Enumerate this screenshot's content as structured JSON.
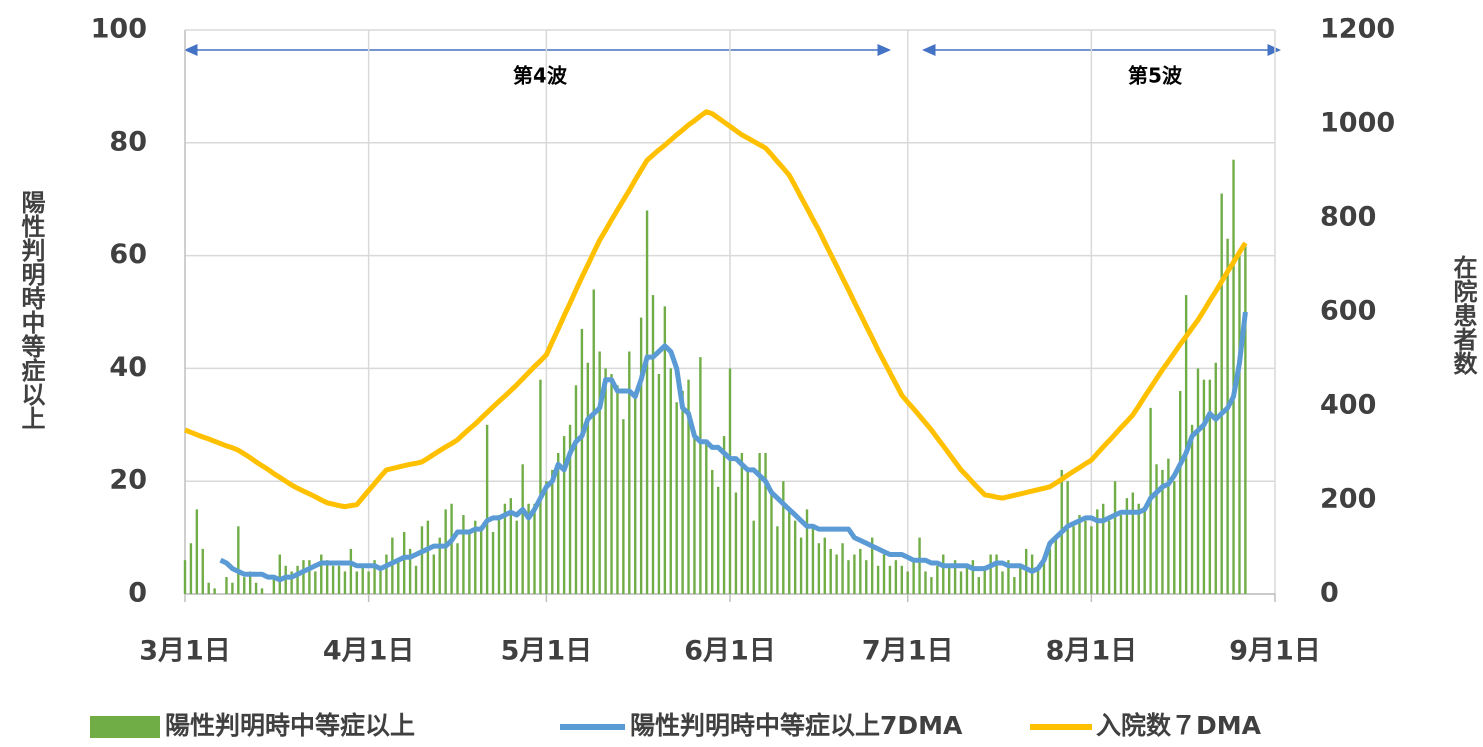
{
  "chart_data": {
    "type": "bar-line",
    "ylabel": "陽性判明時中等症以上",
    "y2label": "在院患者数",
    "annotations": [
      "第4波",
      "第5波"
    ],
    "x": [
      0,
      1,
      2,
      3,
      4,
      5,
      6,
      7,
      8,
      9,
      10,
      11,
      12,
      13,
      14,
      15,
      16,
      17,
      18,
      19,
      20,
      21,
      22,
      23,
      24,
      25,
      26,
      27,
      28,
      29,
      30,
      31,
      32,
      33,
      34,
      35,
      36,
      37,
      38,
      39,
      40,
      41,
      42,
      43,
      44,
      45,
      46,
      47,
      48,
      49,
      50,
      51,
      52,
      53,
      54,
      55,
      56,
      57,
      58,
      59,
      60,
      61,
      62,
      63,
      64,
      65,
      66,
      67,
      68,
      69,
      70,
      71,
      72,
      73,
      74,
      75,
      76,
      77,
      78,
      79,
      80,
      81,
      82,
      83,
      84,
      85,
      86,
      87,
      88,
      89,
      90,
      91,
      92,
      93,
      94,
      95,
      96,
      97,
      98,
      99,
      100,
      101,
      102,
      103,
      104,
      105,
      106,
      107,
      108,
      109,
      110,
      111,
      112,
      113,
      114,
      115,
      116,
      117,
      118,
      119,
      120,
      121,
      122,
      123,
      124,
      125,
      126,
      127,
      128,
      129,
      130,
      131,
      132,
      133,
      134,
      135,
      136,
      137,
      138,
      139,
      140,
      141,
      142,
      143,
      144,
      145,
      146,
      147,
      148,
      149,
      150,
      151,
      152,
      153,
      154,
      155,
      156,
      157,
      158,
      159,
      160,
      161,
      162,
      163,
      164,
      165,
      166,
      167,
      168,
      169,
      170,
      171,
      172,
      173,
      174,
      175,
      176,
      177,
      178,
      179
    ],
    "xlim": [
      0,
      184
    ],
    "xticks": [
      {
        "value": 0,
        "label": "3月1日"
      },
      {
        "value": 31,
        "label": "4月1日"
      },
      {
        "value": 61,
        "label": "5月1日"
      },
      {
        "value": 92,
        "label": "6月1日"
      },
      {
        "value": 122,
        "label": "7月1日"
      },
      {
        "value": 153,
        "label": "8月1日"
      },
      {
        "value": 184,
        "label": "9月1日"
      }
    ],
    "ylim": [
      0,
      100
    ],
    "yticks": [
      0,
      20,
      40,
      60,
      80,
      100
    ],
    "y2lim": [
      0,
      1200
    ],
    "y2ticks": [
      0,
      200,
      400,
      600,
      800,
      1000,
      1200
    ],
    "grid": true,
    "legend": "bottom",
    "series": [
      {
        "name": "陽性判明時中等症以上",
        "type": "bar",
        "color": "#70ad47",
        "values": [
          6,
          9,
          15,
          8,
          2,
          1,
          0,
          3,
          2,
          12,
          3,
          4,
          2,
          1,
          0,
          3,
          7,
          5,
          4,
          5,
          6,
          6,
          4,
          7,
          6,
          5,
          5,
          4,
          8,
          4,
          5,
          4,
          6,
          5,
          7,
          10,
          6,
          11,
          8,
          5,
          12,
          13,
          7,
          10,
          15,
          16,
          9,
          14,
          11,
          13,
          12,
          30,
          11,
          14,
          16,
          17,
          13,
          23,
          16,
          16,
          38,
          20,
          22,
          25,
          28,
          30,
          37,
          47,
          41,
          54,
          43,
          40,
          39,
          37,
          31,
          43,
          35,
          49,
          68,
          53,
          39,
          51,
          40,
          34,
          36,
          38,
          29,
          42,
          27,
          22,
          19,
          28,
          40,
          18,
          25,
          22,
          13,
          25,
          25,
          18,
          12,
          20,
          15,
          13,
          10,
          15,
          12,
          9,
          10,
          8,
          7,
          9,
          6,
          7,
          8,
          6,
          10,
          5,
          7,
          5,
          6,
          5,
          4,
          6,
          10,
          4,
          3,
          5,
          7,
          5,
          6,
          4,
          5,
          6,
          3,
          5,
          7,
          7,
          4,
          6,
          3,
          5,
          8,
          7,
          5,
          6,
          8,
          10,
          22,
          20,
          12,
          14,
          13,
          12,
          15,
          16,
          13,
          20,
          14,
          17,
          18,
          16,
          15,
          33,
          23,
          22,
          24,
          20,
          36,
          53,
          30,
          40,
          38,
          38,
          41,
          71,
          63,
          77,
          60,
          62
        ]
      },
      {
        "name": "陽性判明時中等症以上7DMA",
        "type": "line",
        "color": "#5b9bd5",
        "values": [
          null,
          null,
          null,
          null,
          null,
          null,
          6,
          5.5,
          4.5,
          4,
          3.5,
          3.5,
          3.5,
          3.5,
          3,
          3,
          2.5,
          3,
          3,
          3.5,
          4,
          4.5,
          5,
          5.5,
          5.5,
          5.5,
          5.5,
          5.5,
          5.5,
          5,
          5,
          5,
          5,
          4.5,
          5,
          5.5,
          6,
          6.5,
          6.5,
          7,
          7.5,
          8,
          8.5,
          8.5,
          8.5,
          9.5,
          11,
          11,
          11,
          11.5,
          11.5,
          13,
          13.5,
          13.5,
          14,
          14.5,
          14,
          15,
          13.5,
          15,
          17,
          19,
          20,
          23,
          22,
          25,
          27,
          28,
          31,
          32,
          33,
          38,
          38,
          36,
          36,
          36,
          35,
          38,
          42,
          42,
          43,
          44,
          43,
          40,
          33,
          32,
          28,
          27,
          27,
          26,
          26,
          25,
          24,
          24,
          23,
          22,
          22,
          21,
          20,
          18,
          17,
          16,
          15,
          14,
          13,
          12,
          12,
          11.5,
          11.5,
          11.5,
          11.5,
          11.5,
          11.5,
          10,
          9.5,
          9,
          8.5,
          8,
          7.5,
          7,
          7,
          7,
          6.5,
          6,
          6,
          6,
          5.5,
          5.5,
          5,
          5,
          5,
          5,
          5,
          4.5,
          4.5,
          4.5,
          5,
          5.5,
          5.5,
          5,
          5,
          5,
          4.5,
          4,
          4.5,
          6,
          9,
          10,
          11,
          12,
          12.5,
          13,
          13.5,
          13.5,
          13,
          13,
          13.5,
          14,
          14.5,
          14.5,
          14.5,
          14.5,
          15,
          17,
          18,
          19,
          19.5,
          21,
          23,
          25,
          28,
          29,
          30,
          32,
          31,
          32,
          33,
          35,
          41,
          50
        ]
      },
      {
        "name": "入院数７DMA",
        "type": "line",
        "axis": "y2",
        "color": "#ffc000",
        "values": [
          349,
          344,
          339,
          334,
          330,
          325,
          320,
          315,
          311,
          306,
          298,
          290,
          281,
          273,
          265,
          256,
          248,
          240,
          232,
          225,
          219,
          213,
          207,
          200,
          194,
          191,
          188,
          186,
          188,
          190,
          205,
          220,
          235,
          250,
          264,
          267,
          270,
          273,
          276,
          278,
          281,
          289,
          297,
          305,
          313,
          320,
          328,
          340,
          351,
          362,
          374,
          386,
          398,
          410,
          421,
          433,
          445,
          458,
          471,
          484,
          496,
          509,
          537,
          564,
          592,
          619,
          647,
          674,
          700,
          727,
          753,
          774,
          796,
          817,
          838,
          859,
          881,
          902,
          923,
          934,
          945,
          955,
          966,
          977,
          987,
          998,
          1007,
          1017,
          1026,
          1022,
          1013,
          1004,
          995,
          986,
          977,
          970,
          963,
          956,
          949,
          935,
          920,
          906,
          891,
          868,
          844,
          821,
          797,
          774,
          748,
          723,
          698,
          672,
          647,
          621,
          596,
          570,
          545,
          519,
          495,
          471,
          447,
          423,
          408,
          394,
          379,
          364,
          349,
          332,
          315,
          298,
          281,
          264,
          251,
          237,
          224,
          211,
          209,
          206,
          204,
          207,
          210,
          213,
          216,
          219,
          222,
          225,
          228,
          236,
          244,
          253,
          261,
          269,
          277,
          285,
          299,
          313,
          326,
          340,
          354,
          367,
          381,
          400,
          420,
          439,
          458,
          477,
          495,
          513,
          531,
          548,
          566,
          583,
          603,
          624,
          644,
          665,
          686,
          706,
          727,
          747
        ]
      }
    ]
  }
}
